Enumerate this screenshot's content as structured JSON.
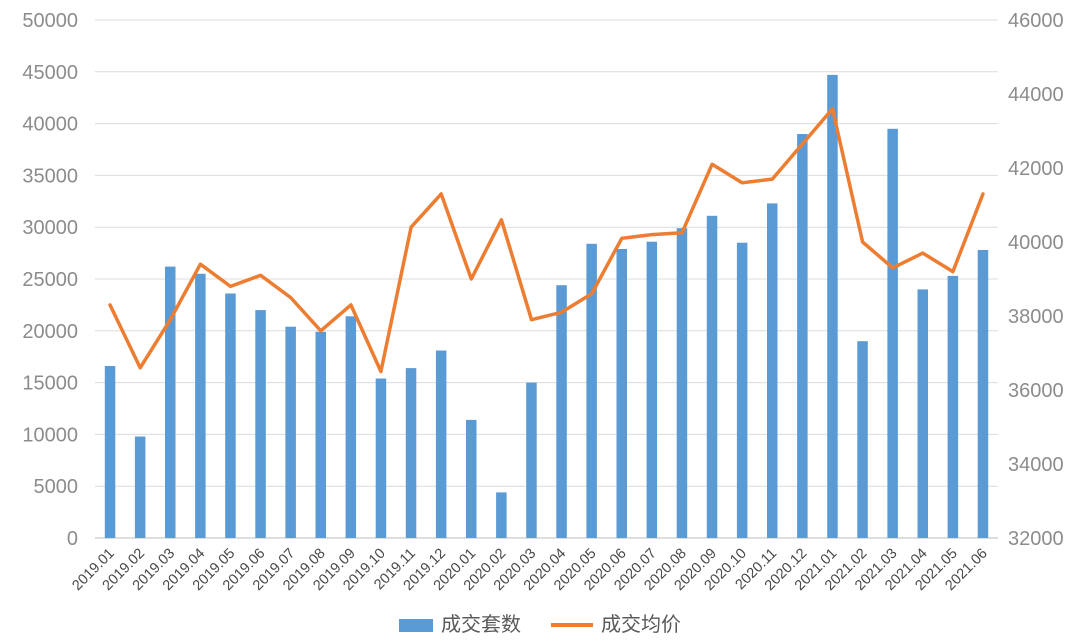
{
  "chart_data": {
    "type": "combo-bar-line",
    "title": "",
    "categories": [
      "2019.01",
      "2019.02",
      "2019.03",
      "2019.04",
      "2019.05",
      "2019.06",
      "2019.07",
      "2019.08",
      "2019.09",
      "2019.10",
      "2019.11",
      "2019.12",
      "2020.01",
      "2020.02",
      "2020.03",
      "2020.04",
      "2020.05",
      "2020.06",
      "2020.07",
      "2020.08",
      "2020.09",
      "2020.10",
      "2020.11",
      "2020.12",
      "2021.01",
      "2021.02",
      "2021.03",
      "2021.04",
      "2021.05",
      "2021.06"
    ],
    "series": [
      {
        "name": "成交套数",
        "type": "bar",
        "axis": "left",
        "color": "#5b9bd5",
        "values": [
          16600,
          9800,
          26200,
          25500,
          23600,
          22000,
          20400,
          19900,
          21400,
          15400,
          16400,
          18100,
          11400,
          4400,
          15000,
          24400,
          28400,
          27900,
          28600,
          29900,
          31100,
          28500,
          32300,
          39000,
          44700,
          19000,
          39500,
          24000,
          25300,
          27800
        ]
      },
      {
        "name": "成交均价",
        "type": "line",
        "axis": "right",
        "color": "#ed7d31",
        "values": [
          38300,
          36600,
          37900,
          39400,
          38800,
          39100,
          38500,
          37600,
          38300,
          36500,
          40400,
          41300,
          39000,
          40600,
          37900,
          38100,
          38600,
          40100,
          40200,
          40250,
          42100,
          41600,
          41700,
          42650,
          43600,
          40000,
          39300,
          39700,
          39200,
          41300
        ]
      }
    ],
    "left_axis": {
      "min": 0,
      "max": 50000,
      "step": 5000,
      "ticks": [
        0,
        5000,
        10000,
        15000,
        20000,
        25000,
        30000,
        35000,
        40000,
        45000,
        50000
      ]
    },
    "right_axis": {
      "min": 32000,
      "max": 46000,
      "step": 2000,
      "ticks": [
        32000,
        34000,
        36000,
        38000,
        40000,
        42000,
        44000,
        46000
      ]
    },
    "grid": "horizontal",
    "legend_position": "bottom",
    "xlabel": "",
    "ylabel": ""
  },
  "colors": {
    "bar": "#5b9bd5",
    "line": "#ed7d31",
    "gridline": "#dcdcdc",
    "axis_text": "#8c8c8c",
    "x_axis_text": "#484848",
    "legend_text": "#595959",
    "background": "#ffffff"
  }
}
